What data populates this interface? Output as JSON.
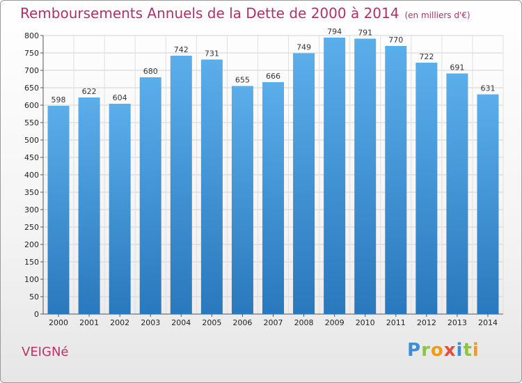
{
  "header": {
    "title": "Remboursements Annuels de la Dette de 2000 à 2014",
    "subtitle": "(en milliers d'€)"
  },
  "footer": {
    "commune": "VEIGNé",
    "logo_letters": [
      {
        "char": "P",
        "color": "#3b8fd9"
      },
      {
        "char": "r",
        "color": "#8cc63f"
      },
      {
        "char": "o",
        "color": "#f39c12"
      },
      {
        "char": "x",
        "color": "#e84c3d"
      },
      {
        "char": "i",
        "color": "#3b8fd9"
      },
      {
        "char": "t",
        "color": "#8cc63f"
      },
      {
        "char": "i",
        "color": "#f39c12"
      }
    ]
  },
  "chart_data": {
    "type": "bar",
    "title": "Remboursements Annuels de la Dette de 2000 à 2014",
    "subtitle": "(en milliers d'€)",
    "categories": [
      "2000",
      "2001",
      "2002",
      "2003",
      "2004",
      "2005",
      "2006",
      "2007",
      "2008",
      "2009",
      "2010",
      "2011",
      "2012",
      "2013",
      "2014"
    ],
    "values": [
      598,
      622,
      604,
      680,
      742,
      731,
      655,
      666,
      749,
      794,
      791,
      770,
      722,
      691,
      631
    ],
    "ylim": [
      0,
      800
    ],
    "yticks": [
      0,
      50,
      100,
      150,
      200,
      250,
      300,
      350,
      400,
      450,
      500,
      550,
      600,
      650,
      700,
      750,
      800
    ],
    "grid": true,
    "bar_color_top": "#5aaeea",
    "bar_color_bottom": "#2a78bd"
  }
}
